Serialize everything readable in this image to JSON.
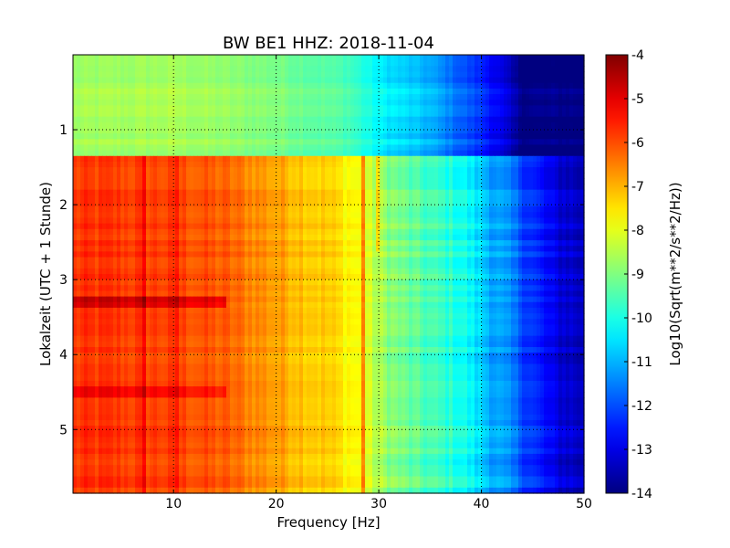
{
  "chart_data": {
    "type": "heatmap",
    "title": "BW BE1 HHZ: 2018-11-04",
    "xlabel": "Frequency [Hz]",
    "ylabel": "Lokalzeit (UTC + 1 Stunde)",
    "xlim": [
      0.2,
      50
    ],
    "ylim": [
      0.0,
      5.85
    ],
    "y_inverted": true,
    "x_ticks": [
      10,
      20,
      30,
      40,
      50
    ],
    "y_ticks": [
      1,
      2,
      3,
      4,
      5
    ],
    "grid": true,
    "colormap": "jet",
    "colorbar": {
      "label": "Log10(Sqrt(m**2/s**2/Hz))",
      "range": [
        -14,
        -4
      ],
      "ticks": [
        -4,
        -5,
        -6,
        -7,
        -8,
        -9,
        -10,
        -11,
        -12,
        -13,
        -14
      ]
    },
    "segments": [
      {
        "name": "",
        "y_range": [
          0.0,
          1.35
        ],
        "frequency_profile": [
          [
            0,
            -8.7
          ],
          [
            10,
            -8.6
          ],
          [
            20,
            -9.0
          ],
          [
            27,
            -9.5
          ],
          [
            30,
            -10.3
          ],
          [
            35,
            -11.0
          ],
          [
            38,
            -11.8
          ],
          [
            40,
            -12.3
          ],
          [
            42,
            -13.0
          ],
          [
            43,
            -13.5
          ],
          [
            44,
            -14.0
          ],
          [
            50,
            -14.0
          ]
        ]
      },
      {
        "name": "",
        "y_range": [
          1.35,
          5.85
        ],
        "frequency_profile": [
          [
            0,
            -5.8
          ],
          [
            5,
            -5.8
          ],
          [
            10,
            -5.9
          ],
          [
            15,
            -6.2
          ],
          [
            20,
            -6.8
          ],
          [
            25,
            -7.3
          ],
          [
            28,
            -7.8
          ],
          [
            30,
            -8.6
          ],
          [
            33,
            -9.3
          ],
          [
            38,
            -10.0
          ],
          [
            41,
            -11.0
          ],
          [
            43,
            -11.6
          ],
          [
            45,
            -12.3
          ],
          [
            47,
            -13.0
          ],
          [
            50,
            -13.4
          ]
        ]
      }
    ],
    "features": [
      {
        "type": "row",
        "y": 3.3,
        "delta_low_freq": 1.0
      },
      {
        "type": "row",
        "y": 4.5,
        "delta_low_freq": 0.6
      },
      {
        "type": "column",
        "x": 28.4,
        "y_range": [
          1.35,
          5.85
        ],
        "delta": 1.6
      },
      {
        "type": "column",
        "x": 29.8,
        "y_range": [
          1.35,
          2.6
        ],
        "delta": 1.2
      },
      {
        "type": "column",
        "x": 7.2,
        "y_range": [
          1.35,
          5.85
        ],
        "delta": 0.5
      },
      {
        "type": "column",
        "x": 10.2,
        "y_range": [
          1.35,
          5.85
        ],
        "delta": 0.5
      }
    ]
  }
}
